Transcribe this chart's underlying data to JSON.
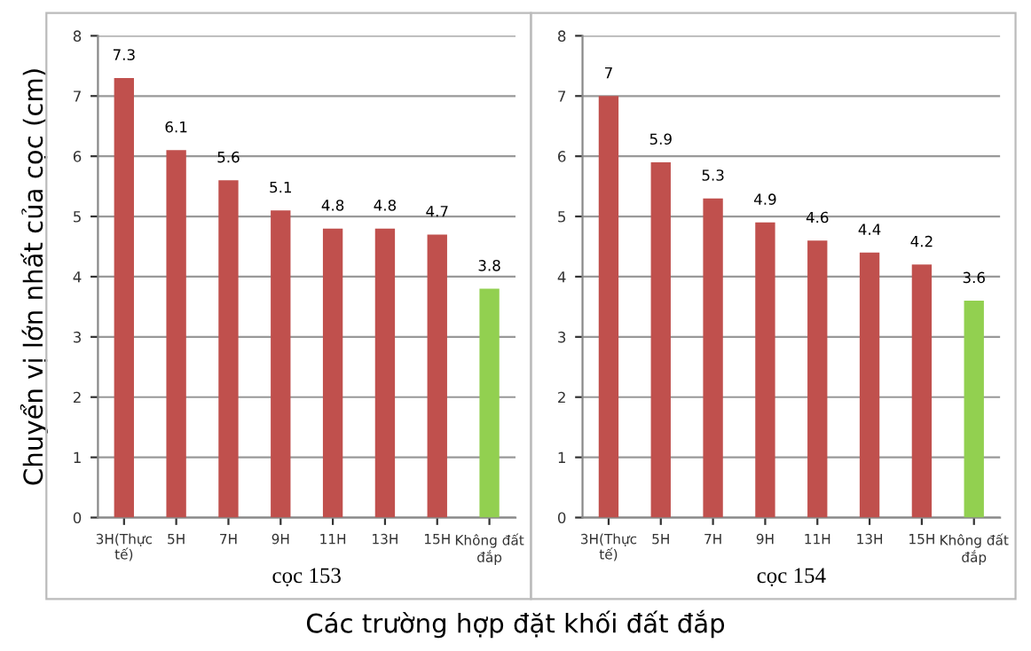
{
  "chart_data": [
    {
      "type": "bar",
      "xlabel": "cọc 153",
      "ylabel": "Chuyển vị lớn nhất của cọc (cm)",
      "categories": [
        "3H(Thực\ntế)",
        "5H",
        "7H",
        "9H",
        "11H",
        "13H",
        "15H",
        "Không đất\nđắp"
      ],
      "values": [
        7.3,
        6.1,
        5.6,
        5.1,
        4.8,
        4.8,
        4.7,
        3.8
      ],
      "colors": [
        "#c0504d",
        "#c0504d",
        "#c0504d",
        "#c0504d",
        "#c0504d",
        "#c0504d",
        "#c0504d",
        "#92d050"
      ],
      "ylim": [
        0,
        8
      ],
      "yticks": [
        0,
        1,
        2,
        3,
        4,
        5,
        6,
        7,
        8
      ],
      "grid": "y",
      "data_labels": true,
      "annotations": [
        "Các trường hợp đặt khối đất đắp"
      ]
    },
    {
      "type": "bar",
      "xlabel": "cọc 154",
      "categories": [
        "3H(Thực\ntế)",
        "5H",
        "7H",
        "9H",
        "11H",
        "13H",
        "15H",
        "Không đất\nđắp"
      ],
      "values": [
        7,
        5.9,
        5.3,
        4.9,
        4.6,
        4.4,
        4.2,
        3.6
      ],
      "colors": [
        "#c0504d",
        "#c0504d",
        "#c0504d",
        "#c0504d",
        "#c0504d",
        "#c0504d",
        "#c0504d",
        "#92d050"
      ],
      "ylim": [
        0,
        8
      ],
      "yticks": [
        0,
        1,
        2,
        3,
        4,
        5,
        6,
        7,
        8
      ],
      "grid": "y",
      "data_labels": true
    }
  ]
}
